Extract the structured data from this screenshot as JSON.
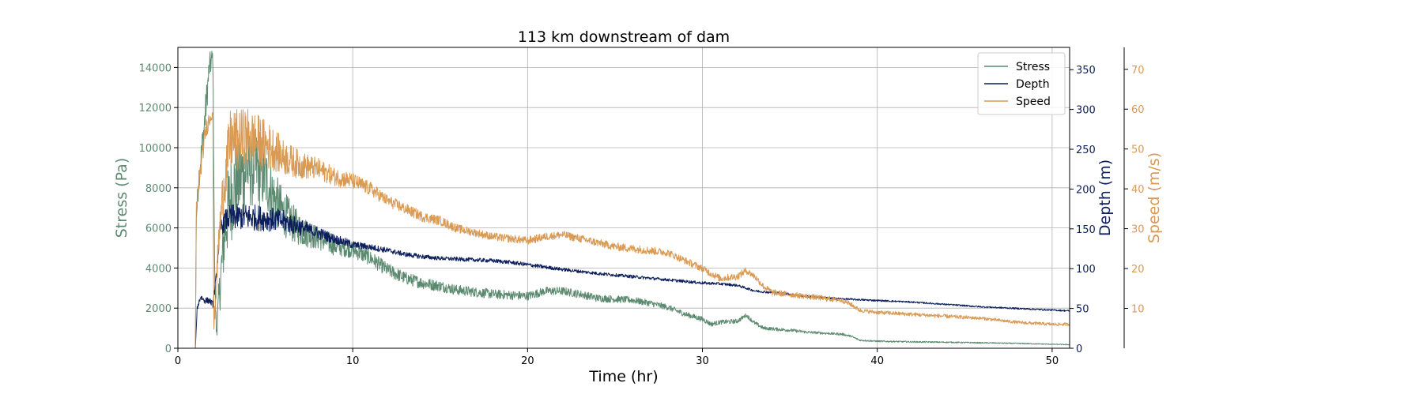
{
  "chart_data": {
    "type": "line",
    "title": "113 km downstream of dam",
    "xlabel": "Time (hr)",
    "xlim": [
      0,
      51
    ],
    "xticks": [
      0,
      10,
      20,
      30,
      40,
      50
    ],
    "grid": true,
    "legend_placement": "top-right",
    "axes": {
      "stress": {
        "label": "Stress (Pa)",
        "side": "left",
        "ylim": [
          0,
          15000
        ],
        "ticks": [
          0,
          2000,
          4000,
          6000,
          8000,
          10000,
          12000,
          14000
        ],
        "color": "#5c8a70"
      },
      "depth": {
        "label": "Depth (m)",
        "side": "right",
        "ylim": [
          0,
          378
        ],
        "ticks": [
          0,
          50,
          100,
          150,
          200,
          250,
          300,
          350
        ],
        "color": "#0c1f5c"
      },
      "speed": {
        "label": "Speed (m/s)",
        "side": "right-outer",
        "ylim": [
          0,
          75.5
        ],
        "ticks": [
          10,
          20,
          30,
          40,
          50,
          60,
          70
        ],
        "color": "#d99a54"
      }
    },
    "series": [
      {
        "name": "Stress",
        "axis": "stress",
        "color": "#5c8a70",
        "x": [
          0,
          1.0,
          1.05,
          1.2,
          1.5,
          1.8,
          2.0,
          2.1,
          2.2,
          2.4,
          2.7,
          3.0,
          3.5,
          4.0,
          4.5,
          5.0,
          5.5,
          6.0,
          6.5,
          7.0,
          8.0,
          9.0,
          10.0,
          11.0,
          12.0,
          13.0,
          14.0,
          15.0,
          16.0,
          17.0,
          18.0,
          19.0,
          20.0,
          21.0,
          22.0,
          23.0,
          24.0,
          25.0,
          26.0,
          27.0,
          28.0,
          29.0,
          30.0,
          30.5,
          31.0,
          32.0,
          32.5,
          33.0,
          33.5,
          35.0,
          36.0,
          37.0,
          38.0,
          38.5,
          39.0,
          40.0,
          42.0,
          44.0,
          46.0,
          48.0,
          50.0,
          51.0
        ],
        "y": [
          0,
          0,
          6500,
          8500,
          11000,
          14000,
          14500,
          4000,
          800,
          3000,
          6000,
          7500,
          8500,
          9000,
          9000,
          8500,
          7500,
          6800,
          6300,
          5900,
          5500,
          5100,
          4900,
          4500,
          3900,
          3500,
          3250,
          3100,
          2900,
          2800,
          2700,
          2650,
          2600,
          2850,
          2850,
          2700,
          2500,
          2450,
          2400,
          2250,
          2050,
          1700,
          1450,
          1200,
          1300,
          1350,
          1650,
          1250,
          1000,
          900,
          800,
          750,
          700,
          600,
          400,
          350,
          320,
          300,
          270,
          240,
          200,
          180
        ],
        "noise": [
          0,
          0,
          500,
          700,
          900,
          700,
          600,
          500,
          400,
          1200,
          2000,
          2300,
          2300,
          2100,
          1900,
          1700,
          1400,
          1200,
          1000,
          800,
          600,
          500,
          400,
          380,
          350,
          320,
          300,
          280,
          260,
          250,
          240,
          230,
          220,
          210,
          210,
          200,
          190,
          180,
          170,
          160,
          150,
          140,
          130,
          120,
          110,
          110,
          100,
          100,
          90,
          80,
          70,
          60,
          60,
          50,
          40,
          40,
          35,
          30,
          30,
          25,
          20,
          20
        ]
      },
      {
        "name": "Depth",
        "axis": "depth",
        "color": "#0c1f5c",
        "x": [
          0,
          1.0,
          1.1,
          1.3,
          1.5,
          1.8,
          2.0,
          2.2,
          2.4,
          2.7,
          3.0,
          4.0,
          5.0,
          6.0,
          7.0,
          8.0,
          9.0,
          10.0,
          11.0,
          12.0,
          13.0,
          14.0,
          15.0,
          16.0,
          17.0,
          18.0,
          19.0,
          20.0,
          22.0,
          24.0,
          26.0,
          28.0,
          30.0,
          31.0,
          32.0,
          33.0,
          34.0,
          35.0,
          36.0,
          38.0,
          40.0,
          42.0,
          44.0,
          46.0,
          48.0,
          50.0,
          51.0
        ],
        "y": [
          0,
          0,
          50,
          65,
          60,
          60,
          55,
          90,
          150,
          160,
          165,
          165,
          163,
          160,
          152,
          145,
          137,
          130,
          127,
          123,
          118,
          115,
          113,
          112,
          111,
          110,
          108,
          105,
          99,
          94,
          90,
          86,
          82,
          81,
          79,
          72,
          70,
          68,
          65,
          62,
          60,
          58,
          55,
          52,
          50,
          48,
          47
        ],
        "noise": [
          0,
          0,
          3,
          4,
          4,
          4,
          4,
          6,
          10,
          14,
          16,
          17,
          16,
          14,
          11,
          8,
          6,
          5,
          4,
          3.5,
          3,
          3,
          2.5,
          2.5,
          2.5,
          2.5,
          2.5,
          2.5,
          2.2,
          2,
          2,
          1.8,
          1.8,
          1.7,
          1.6,
          1.5,
          1.5,
          1.4,
          1.3,
          1.2,
          1.1,
          1,
          1,
          1,
          1,
          1,
          1
        ]
      },
      {
        "name": "Speed",
        "axis": "speed",
        "color": "#d99a54",
        "x": [
          0,
          1.0,
          1.05,
          1.3,
          1.6,
          2.0,
          2.05,
          2.2,
          2.3,
          2.6,
          3.0,
          3.5,
          4.0,
          4.5,
          5.0,
          5.5,
          6.0,
          7.0,
          8.0,
          9.0,
          10.0,
          11.0,
          12.0,
          13.0,
          14.0,
          15.0,
          16.0,
          17.0,
          18.0,
          19.0,
          20.0,
          21.0,
          22.0,
          23.0,
          24.0,
          25.0,
          26.0,
          27.0,
          28.0,
          29.0,
          30.0,
          31.0,
          32.0,
          32.5,
          33.0,
          33.5,
          34.0,
          35.0,
          36.0,
          37.0,
          38.0,
          38.5,
          39.0,
          40.0,
          42.0,
          44.0,
          46.0,
          48.0,
          50.0,
          51.0
        ],
        "y": [
          0,
          0,
          35,
          45,
          55,
          60,
          5,
          15,
          25,
          40,
          52,
          52,
          53,
          52,
          51,
          50,
          48,
          46,
          45,
          43,
          42,
          40,
          37,
          35,
          33,
          32,
          30,
          29,
          28,
          27.5,
          27,
          28,
          28.5,
          27.5,
          26.5,
          25.5,
          25,
          24.5,
          24,
          22,
          20,
          17.5,
          18,
          19.5,
          18,
          15.5,
          14,
          13.5,
          13,
          12.5,
          12,
          11,
          9.5,
          9,
          8.5,
          8,
          7.5,
          6.5,
          6,
          6
        ],
        "noise": [
          0,
          0,
          2,
          2.5,
          2.5,
          2,
          2,
          3,
          4,
          7,
          8,
          8,
          7.5,
          7,
          6.5,
          5.5,
          4.5,
          3.5,
          2.8,
          2.3,
          2,
          1.8,
          1.5,
          1.4,
          1.3,
          1.2,
          1.1,
          1,
          1,
          1,
          1,
          1,
          1,
          1,
          1,
          1,
          1,
          1,
          0.9,
          0.9,
          0.9,
          0.9,
          0.9,
          0.9,
          0.8,
          0.8,
          0.8,
          0.7,
          0.7,
          0.7,
          0.6,
          0.6,
          0.5,
          0.5,
          0.5,
          0.5,
          0.4,
          0.4,
          0.4,
          0.4
        ]
      }
    ]
  }
}
